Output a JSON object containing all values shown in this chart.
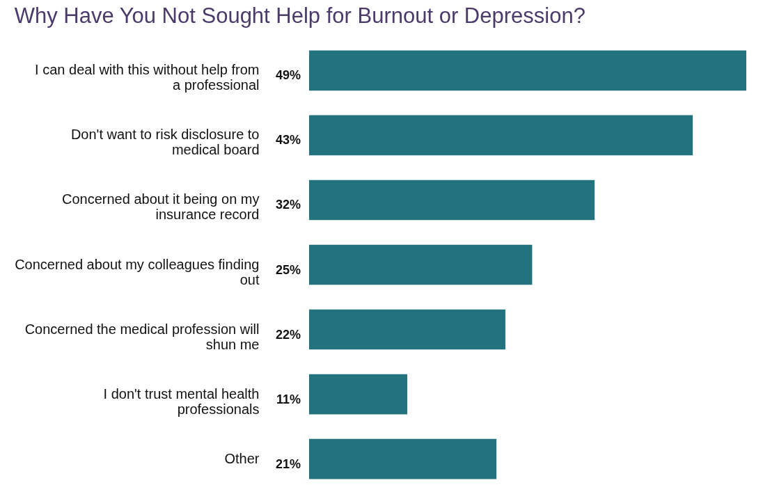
{
  "chart_data": {
    "type": "bar",
    "orientation": "horizontal",
    "title": "Why Have You Not Sought Help for Burnout or Depression?",
    "categories": [
      "I can deal with this without help from a professional",
      "Don't want to risk disclosure to medical board",
      "Concerned about it being on my insurance record",
      "Concerned about my colleagues finding out",
      "Concerned the medical profession will shun me",
      "I don't trust mental health professionals",
      "Other"
    ],
    "values": [
      49,
      43,
      32,
      25,
      22,
      11,
      21
    ],
    "value_labels": [
      "49%",
      "43%",
      "32%",
      "25%",
      "22%",
      "11%",
      "21%"
    ],
    "color": "#23737e",
    "grid": false
  }
}
